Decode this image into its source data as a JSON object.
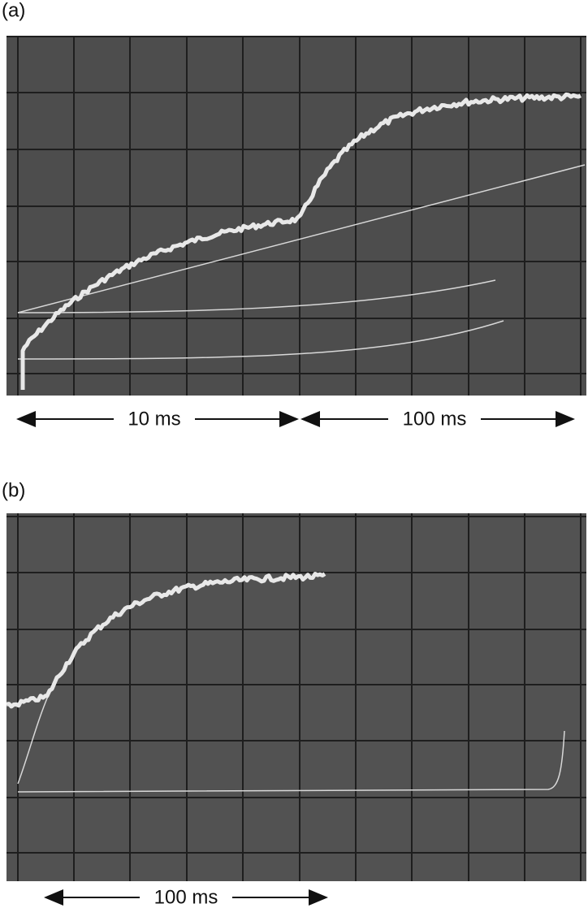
{
  "panels": [
    {
      "label": "(a)",
      "scale_bars": [
        "10 ms",
        "100 ms"
      ]
    },
    {
      "label": "(b)",
      "scale_bars": [
        "100 ms"
      ]
    }
  ]
}
